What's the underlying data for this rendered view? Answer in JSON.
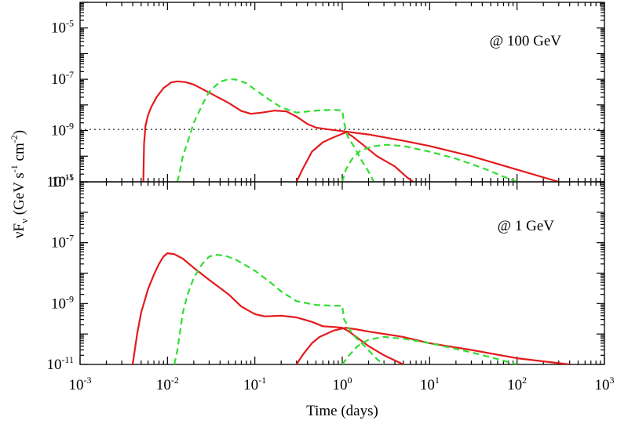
{
  "chart_data": [
    {
      "type": "line",
      "annotation": "@ 100 GeV",
      "xscale": "log",
      "yscale": "log",
      "xlim": [
        0.001,
        1000
      ],
      "ylim": [
        1e-11,
        0.0001
      ],
      "ytick_exponents": [
        -11,
        -9,
        -7,
        -5
      ],
      "hline": {
        "value": 1.1e-09,
        "style": "dotted",
        "color": "#555555"
      },
      "series": [
        {
          "color": "#e41a1c",
          "style": "solid",
          "points": [
            [
              0.0053,
              1e-11
            ],
            [
              0.0054,
              3e-10
            ],
            [
              0.0056,
              1.5e-09
            ],
            [
              0.006,
              4e-09
            ],
            [
              0.0065,
              8e-09
            ],
            [
              0.0075,
              2e-08
            ],
            [
              0.009,
              4.5e-08
            ],
            [
              0.011,
              7.5e-08
            ],
            [
              0.013,
              8.3e-08
            ],
            [
              0.016,
              7.8e-08
            ],
            [
              0.02,
              6.2e-08
            ],
            [
              0.03,
              3e-08
            ],
            [
              0.05,
              1.2e-08
            ],
            [
              0.07,
              5.8e-09
            ],
            [
              0.09,
              4.5e-09
            ],
            [
              0.12,
              5e-09
            ],
            [
              0.17,
              6e-09
            ],
            [
              0.23,
              5.6e-09
            ],
            [
              0.3,
              3.5e-09
            ],
            [
              0.4,
              1.8e-09
            ],
            [
              0.5,
              1.3e-09
            ],
            [
              0.7,
              1.1e-09
            ],
            [
              1,
              9.5e-10
            ],
            [
              2,
              7e-10
            ],
            [
              5,
              4e-10
            ],
            [
              10,
              2.5e-10
            ],
            [
              30,
              1e-10
            ],
            [
              100,
              3e-11
            ],
            [
              300,
              1e-11
            ]
          ]
        },
        {
          "color": "#e41a1c",
          "style": "solid",
          "points": [
            [
              0.3,
              1e-11
            ],
            [
              0.35,
              3e-11
            ],
            [
              0.45,
              1.5e-10
            ],
            [
              0.6,
              3.5e-10
            ],
            [
              0.8,
              5.5e-10
            ],
            [
              1.1,
              8.5e-10
            ],
            [
              1.3,
              6e-10
            ],
            [
              1.8,
              2.5e-10
            ],
            [
              2.5,
              1e-10
            ],
            [
              4,
              4e-11
            ],
            [
              5.5,
              1.5e-11
            ],
            [
              6.5,
              1e-11
            ]
          ]
        },
        {
          "color": "#33dd33",
          "style": "dashed",
          "points": [
            [
              0.013,
              1e-11
            ],
            [
              0.014,
              3e-11
            ],
            [
              0.015,
              1e-10
            ],
            [
              0.017,
              3.5e-10
            ],
            [
              0.02,
              2e-09
            ],
            [
              0.025,
              1e-08
            ],
            [
              0.03,
              3.3e-08
            ],
            [
              0.04,
              8e-08
            ],
            [
              0.05,
              1e-07
            ],
            [
              0.06,
              9.8e-08
            ],
            [
              0.08,
              7e-08
            ],
            [
              0.1,
              4e-08
            ],
            [
              0.15,
              1.5e-08
            ],
            [
              0.2,
              8e-09
            ],
            [
              0.3,
              5e-09
            ],
            [
              0.5,
              6e-09
            ],
            [
              0.8,
              6.5e-09
            ],
            [
              1.0,
              6e-09
            ],
            [
              1.05,
              2e-09
            ],
            [
              1.15,
              6e-10
            ],
            [
              1.4,
              2e-10
            ],
            [
              1.7,
              6e-11
            ],
            [
              2,
              2.5e-11
            ],
            [
              2.3,
              1e-11
            ]
          ]
        },
        {
          "color": "#33dd33",
          "style": "dashed",
          "points": [
            [
              1.0,
              1e-11
            ],
            [
              1.1,
              3e-11
            ],
            [
              1.3,
              8e-11
            ],
            [
              1.6,
              1.6e-10
            ],
            [
              2.2,
              2.4e-10
            ],
            [
              3.2,
              2.8e-10
            ],
            [
              5,
              2.5e-10
            ],
            [
              10,
              1.5e-10
            ],
            [
              20,
              8e-11
            ],
            [
              40,
              3.5e-11
            ],
            [
              70,
              1.6e-11
            ],
            [
              100,
              1e-11
            ]
          ]
        }
      ]
    },
    {
      "type": "line",
      "annotation": "@ 1 GeV",
      "xscale": "log",
      "yscale": "log",
      "xlim": [
        0.001,
        1000
      ],
      "ylim": [
        1e-11,
        1e-05
      ],
      "ytick_exponents": [
        -11,
        -9,
        -7,
        -5
      ],
      "series": [
        {
          "color": "#e41a1c",
          "style": "solid",
          "points": [
            [
              0.004,
              1e-11
            ],
            [
              0.0045,
              1e-10
            ],
            [
              0.005,
              5e-10
            ],
            [
              0.006,
              3e-09
            ],
            [
              0.007,
              9e-09
            ],
            [
              0.008,
              2e-08
            ],
            [
              0.009,
              3.5e-08
            ],
            [
              0.01,
              4.5e-08
            ],
            [
              0.012,
              4.2e-08
            ],
            [
              0.015,
              3e-08
            ],
            [
              0.02,
              1.5e-08
            ],
            [
              0.03,
              6e-09
            ],
            [
              0.05,
              2e-09
            ],
            [
              0.07,
              8e-10
            ],
            [
              0.1,
              4.5e-10
            ],
            [
              0.13,
              3.8e-10
            ],
            [
              0.2,
              4e-10
            ],
            [
              0.3,
              3.5e-10
            ],
            [
              0.45,
              2.5e-10
            ],
            [
              0.6,
              1.8e-10
            ],
            [
              0.8,
              1.7e-10
            ],
            [
              1.0,
              1.6e-10
            ],
            [
              1.2,
              1.2e-10
            ],
            [
              2,
              4e-11
            ],
            [
              3,
              2e-11
            ],
            [
              5,
              1e-11
            ]
          ]
        },
        {
          "color": "#e41a1c",
          "style": "solid",
          "points": [
            [
              0.3,
              1e-11
            ],
            [
              0.35,
              2e-11
            ],
            [
              0.45,
              5e-11
            ],
            [
              0.55,
              8e-11
            ],
            [
              0.8,
              1.3e-10
            ],
            [
              1.1,
              1.6e-10
            ],
            [
              1.5,
              1.4e-10
            ],
            [
              2,
              1.2e-10
            ],
            [
              5,
              8e-11
            ],
            [
              10,
              5e-11
            ],
            [
              30,
              3e-11
            ],
            [
              100,
              1.6e-11
            ],
            [
              400,
              1e-11
            ]
          ]
        },
        {
          "color": "#33dd33",
          "style": "dashed",
          "points": [
            [
              0.012,
              1e-11
            ],
            [
              0.013,
              3e-11
            ],
            [
              0.015,
              5e-10
            ],
            [
              0.017,
              2e-09
            ],
            [
              0.02,
              7e-09
            ],
            [
              0.025,
              2e-08
            ],
            [
              0.03,
              3.5e-08
            ],
            [
              0.035,
              4e-08
            ],
            [
              0.045,
              3.8e-08
            ],
            [
              0.06,
              2.8e-08
            ],
            [
              0.1,
              1.2e-08
            ],
            [
              0.15,
              5e-09
            ],
            [
              0.2,
              2.5e-09
            ],
            [
              0.3,
              1.2e-09
            ],
            [
              0.5,
              9e-10
            ],
            [
              0.8,
              8.5e-10
            ],
            [
              1.0,
              8.5e-10
            ],
            [
              1.05,
              3e-10
            ],
            [
              1.3,
              1e-10
            ],
            [
              1.8,
              4e-11
            ],
            [
              2.5,
              1.5e-11
            ],
            [
              3,
              1e-11
            ]
          ]
        },
        {
          "color": "#33dd33",
          "style": "dashed",
          "points": [
            [
              1.0,
              1e-11
            ],
            [
              1.2,
              2e-11
            ],
            [
              1.5,
              4e-11
            ],
            [
              2,
              6.5e-11
            ],
            [
              3,
              8e-11
            ],
            [
              5,
              7e-11
            ],
            [
              10,
              5e-11
            ],
            [
              30,
              2.5e-11
            ],
            [
              60,
              1.5e-11
            ],
            [
              100,
              1e-11
            ]
          ]
        }
      ]
    }
  ],
  "shared": {
    "xlabel": "Time (days)",
    "ylabel": "νF",
    "ylabel_sub": "ν",
    "ylabel_units_a": " (GeV s",
    "ylabel_units_b": " cm",
    "ylabel_units_c": ")",
    "ylabel_sup1": "-1",
    "ylabel_sup2": "-2",
    "xtick_base": "10",
    "xtick_exponents": [
      -3,
      -2,
      -1,
      0,
      1,
      2,
      3
    ]
  }
}
